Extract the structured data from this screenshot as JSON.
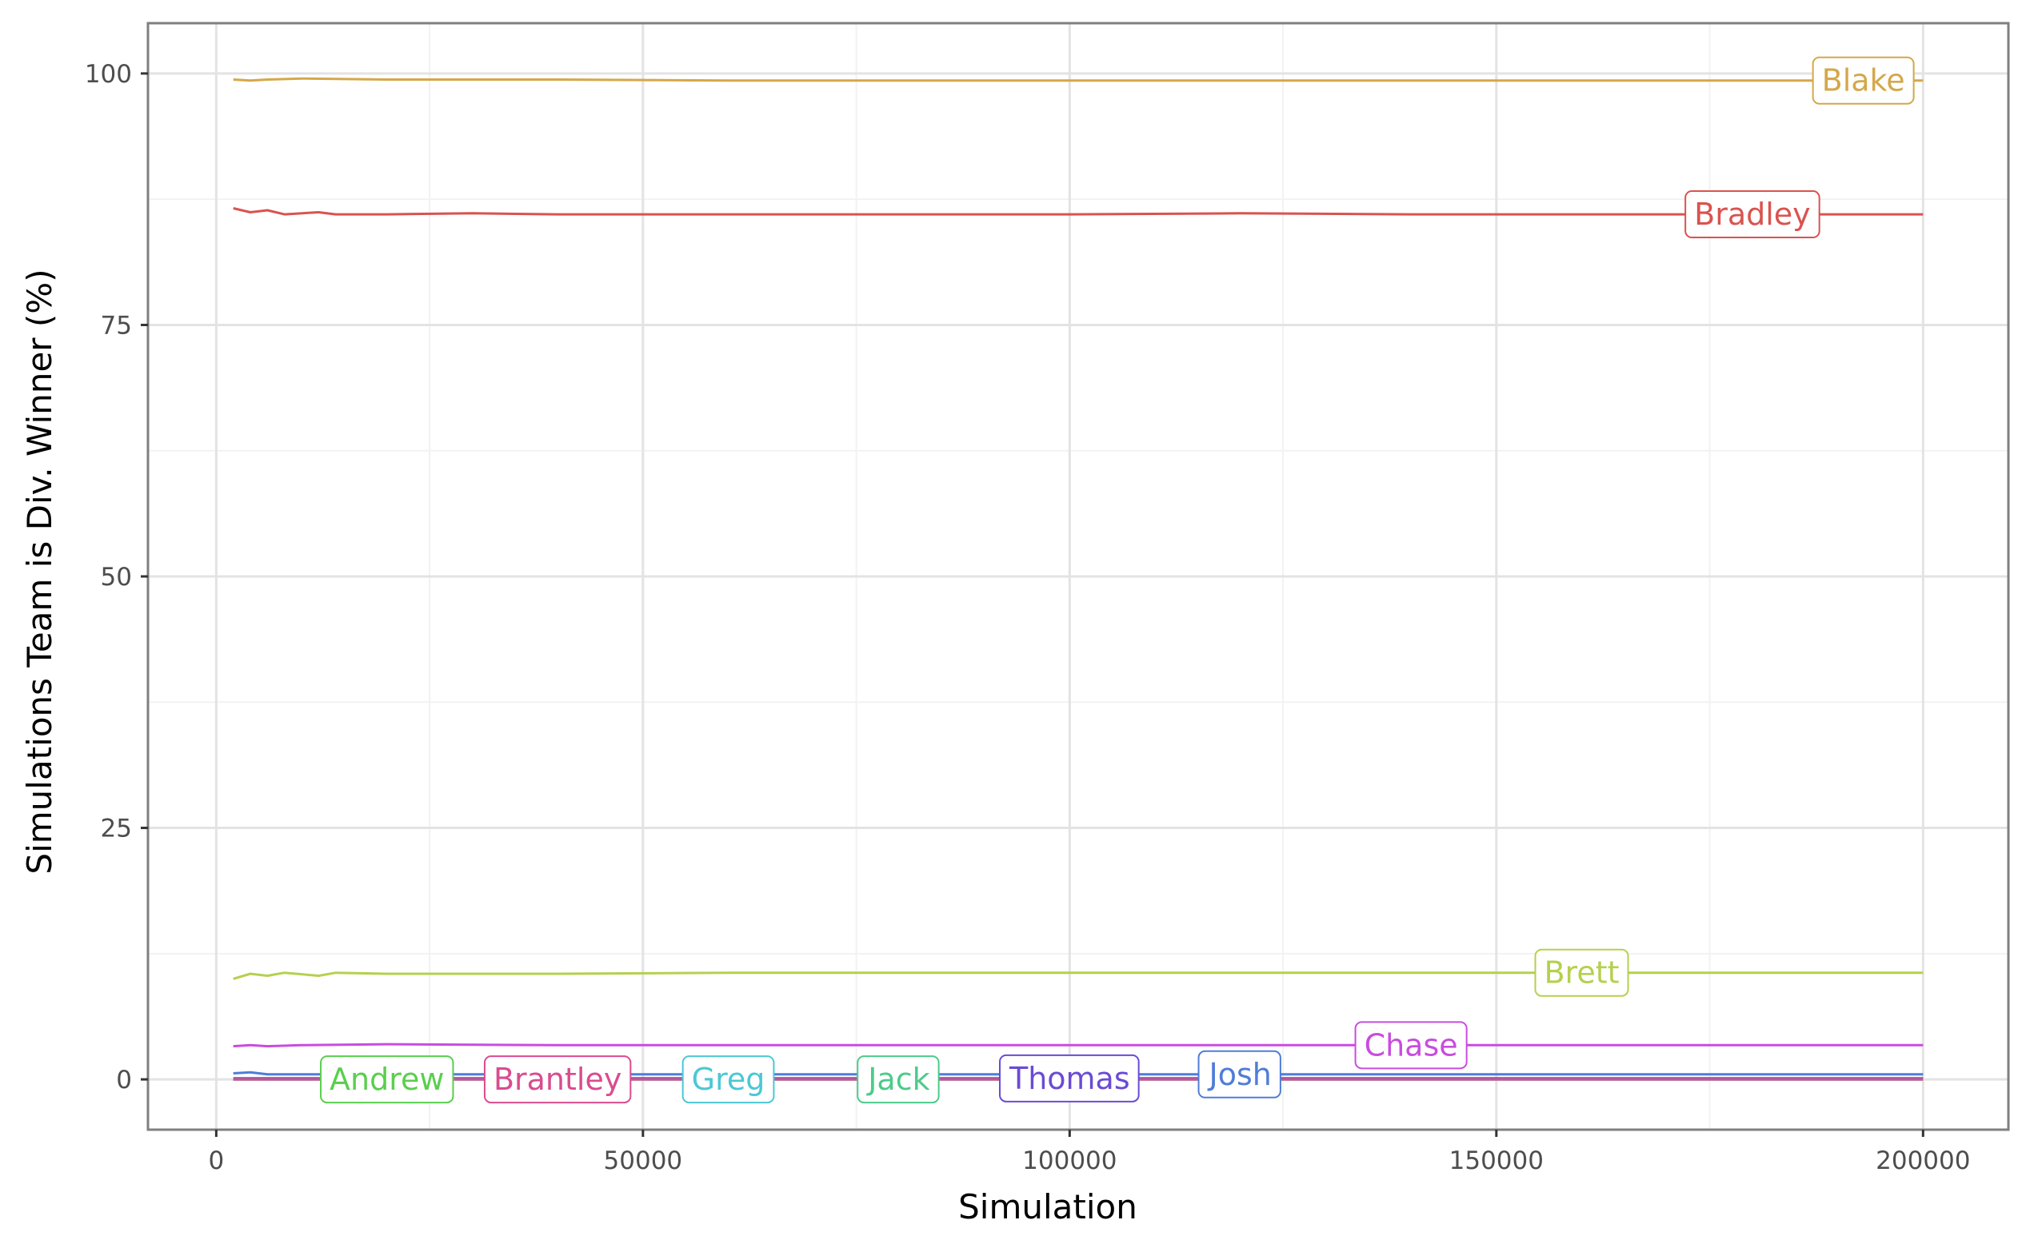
{
  "chart_data": {
    "type": "line",
    "title": "",
    "xlabel": "Simulation",
    "ylabel": "Simulations Team is Div. Winner (%)",
    "xlim": [
      -8000,
      210000
    ],
    "ylim": [
      -5,
      105
    ],
    "x_ticks": [
      0,
      50000,
      100000,
      150000,
      200000
    ],
    "x_tick_labels": [
      "0",
      "50000",
      "100000",
      "150000",
      "200000"
    ],
    "y_ticks": [
      0,
      25,
      50,
      75,
      100
    ],
    "y_tick_labels": [
      "0",
      "25",
      "50",
      "75",
      "100"
    ],
    "grid": true,
    "legend": "direct-labels",
    "series": [
      {
        "name": "Blake",
        "color": "#D4A84A",
        "x": [
          2000,
          4000,
          6000,
          10000,
          20000,
          40000,
          60000,
          80000,
          100000,
          120000,
          140000,
          160000,
          180000,
          200000
        ],
        "values": [
          99.4,
          99.3,
          99.4,
          99.5,
          99.4,
          99.4,
          99.3,
          99.3,
          99.3,
          99.3,
          99.3,
          99.3,
          99.3,
          99.3
        ],
        "label_x": 193000
      },
      {
        "name": "Bradley",
        "color": "#D9534F",
        "x": [
          2000,
          4000,
          6000,
          8000,
          12000,
          14000,
          20000,
          30000,
          40000,
          60000,
          80000,
          100000,
          120000,
          140000,
          160000,
          180000,
          200000
        ],
        "values": [
          86.6,
          86.2,
          86.4,
          86.0,
          86.2,
          86.0,
          86.0,
          86.1,
          86.0,
          86.0,
          86.0,
          86.0,
          86.1,
          86.0,
          86.0,
          86.0,
          86.0
        ],
        "label_x": 180000
      },
      {
        "name": "Brett",
        "color": "#B5D04E",
        "x": [
          2000,
          4000,
          6000,
          8000,
          12000,
          14000,
          20000,
          30000,
          40000,
          60000,
          80000,
          100000,
          120000,
          140000,
          160000,
          180000,
          200000
        ],
        "values": [
          10.0,
          10.5,
          10.3,
          10.6,
          10.3,
          10.6,
          10.5,
          10.5,
          10.5,
          10.6,
          10.6,
          10.6,
          10.6,
          10.6,
          10.6,
          10.6,
          10.6
        ],
        "label_x": 160000
      },
      {
        "name": "Chase",
        "color": "#C94CE0",
        "x": [
          2000,
          4000,
          6000,
          10000,
          20000,
          40000,
          60000,
          80000,
          100000,
          120000,
          140000,
          160000,
          180000,
          200000
        ],
        "values": [
          3.3,
          3.4,
          3.3,
          3.4,
          3.5,
          3.4,
          3.4,
          3.4,
          3.4,
          3.4,
          3.4,
          3.4,
          3.4,
          3.4
        ],
        "label_x": 140000
      },
      {
        "name": "Josh",
        "color": "#4F7DD9",
        "x": [
          2000,
          4000,
          6000,
          10000,
          20000,
          40000,
          60000,
          80000,
          100000,
          120000,
          140000,
          160000,
          180000,
          200000
        ],
        "values": [
          0.6,
          0.7,
          0.5,
          0.5,
          0.5,
          0.5,
          0.5,
          0.5,
          0.5,
          0.5,
          0.5,
          0.5,
          0.5,
          0.5
        ],
        "label_x": 120000
      },
      {
        "name": "Thomas",
        "color": "#6A4BD6",
        "x": [
          2000,
          50000,
          100000,
          150000,
          200000
        ],
        "values": [
          0.1,
          0.1,
          0.1,
          0.1,
          0.1
        ],
        "label_x": 100000
      },
      {
        "name": "Jack",
        "color": "#4CCB8A",
        "x": [
          2000,
          50000,
          100000,
          150000,
          200000
        ],
        "values": [
          0.0,
          0.0,
          0.0,
          0.0,
          0.0
        ],
        "label_x": 80000
      },
      {
        "name": "Greg",
        "color": "#4BC8D4",
        "x": [
          2000,
          50000,
          100000,
          150000,
          200000
        ],
        "values": [
          0.0,
          0.0,
          0.0,
          0.0,
          0.0
        ],
        "label_x": 60000
      },
      {
        "name": "Andrew",
        "color": "#5ACF4E",
        "x": [
          2000,
          50000,
          100000,
          150000,
          200000
        ],
        "values": [
          0.0,
          0.0,
          0.0,
          0.0,
          0.0
        ],
        "label_x": 20000
      },
      {
        "name": "Brantley",
        "color": "#D94C8F",
        "x": [
          2000,
          50000,
          100000,
          150000,
          200000
        ],
        "values": [
          0.0,
          0.0,
          0.0,
          0.0,
          0.0
        ],
        "label_x": 40000
      }
    ]
  }
}
